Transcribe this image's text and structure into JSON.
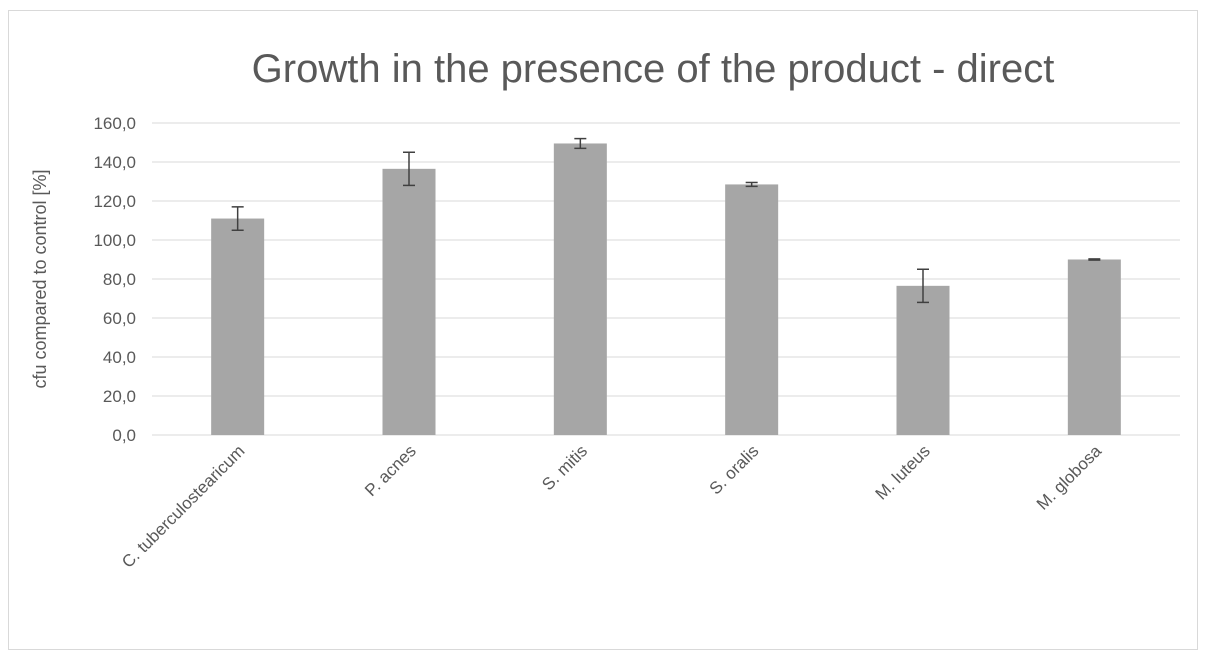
{
  "chart_data": {
    "type": "bar",
    "title": "Growth in the presence of the product - direct",
    "ylabel": "cfu compared to control [%]",
    "xlabel": "",
    "ylim": [
      0,
      160
    ],
    "yticks": [
      "0,0",
      "20,0",
      "40,0",
      "60,0",
      "80,0",
      "100,0",
      "120,0",
      "140,0",
      "160,0"
    ],
    "ytick_values": [
      0,
      20,
      40,
      60,
      80,
      100,
      120,
      140,
      160
    ],
    "categories": [
      "C. tuberculostearicum",
      "P. acnes",
      "S. mitis",
      "S. oralis",
      "M. luteus",
      "M. globosa"
    ],
    "values": [
      111,
      136.5,
      149.5,
      128.5,
      76.5,
      90
    ],
    "error": [
      6,
      8.5,
      2.5,
      1,
      8.5,
      0.3
    ],
    "bar_color": "#a6a6a6",
    "grid": true,
    "legend": "none"
  }
}
